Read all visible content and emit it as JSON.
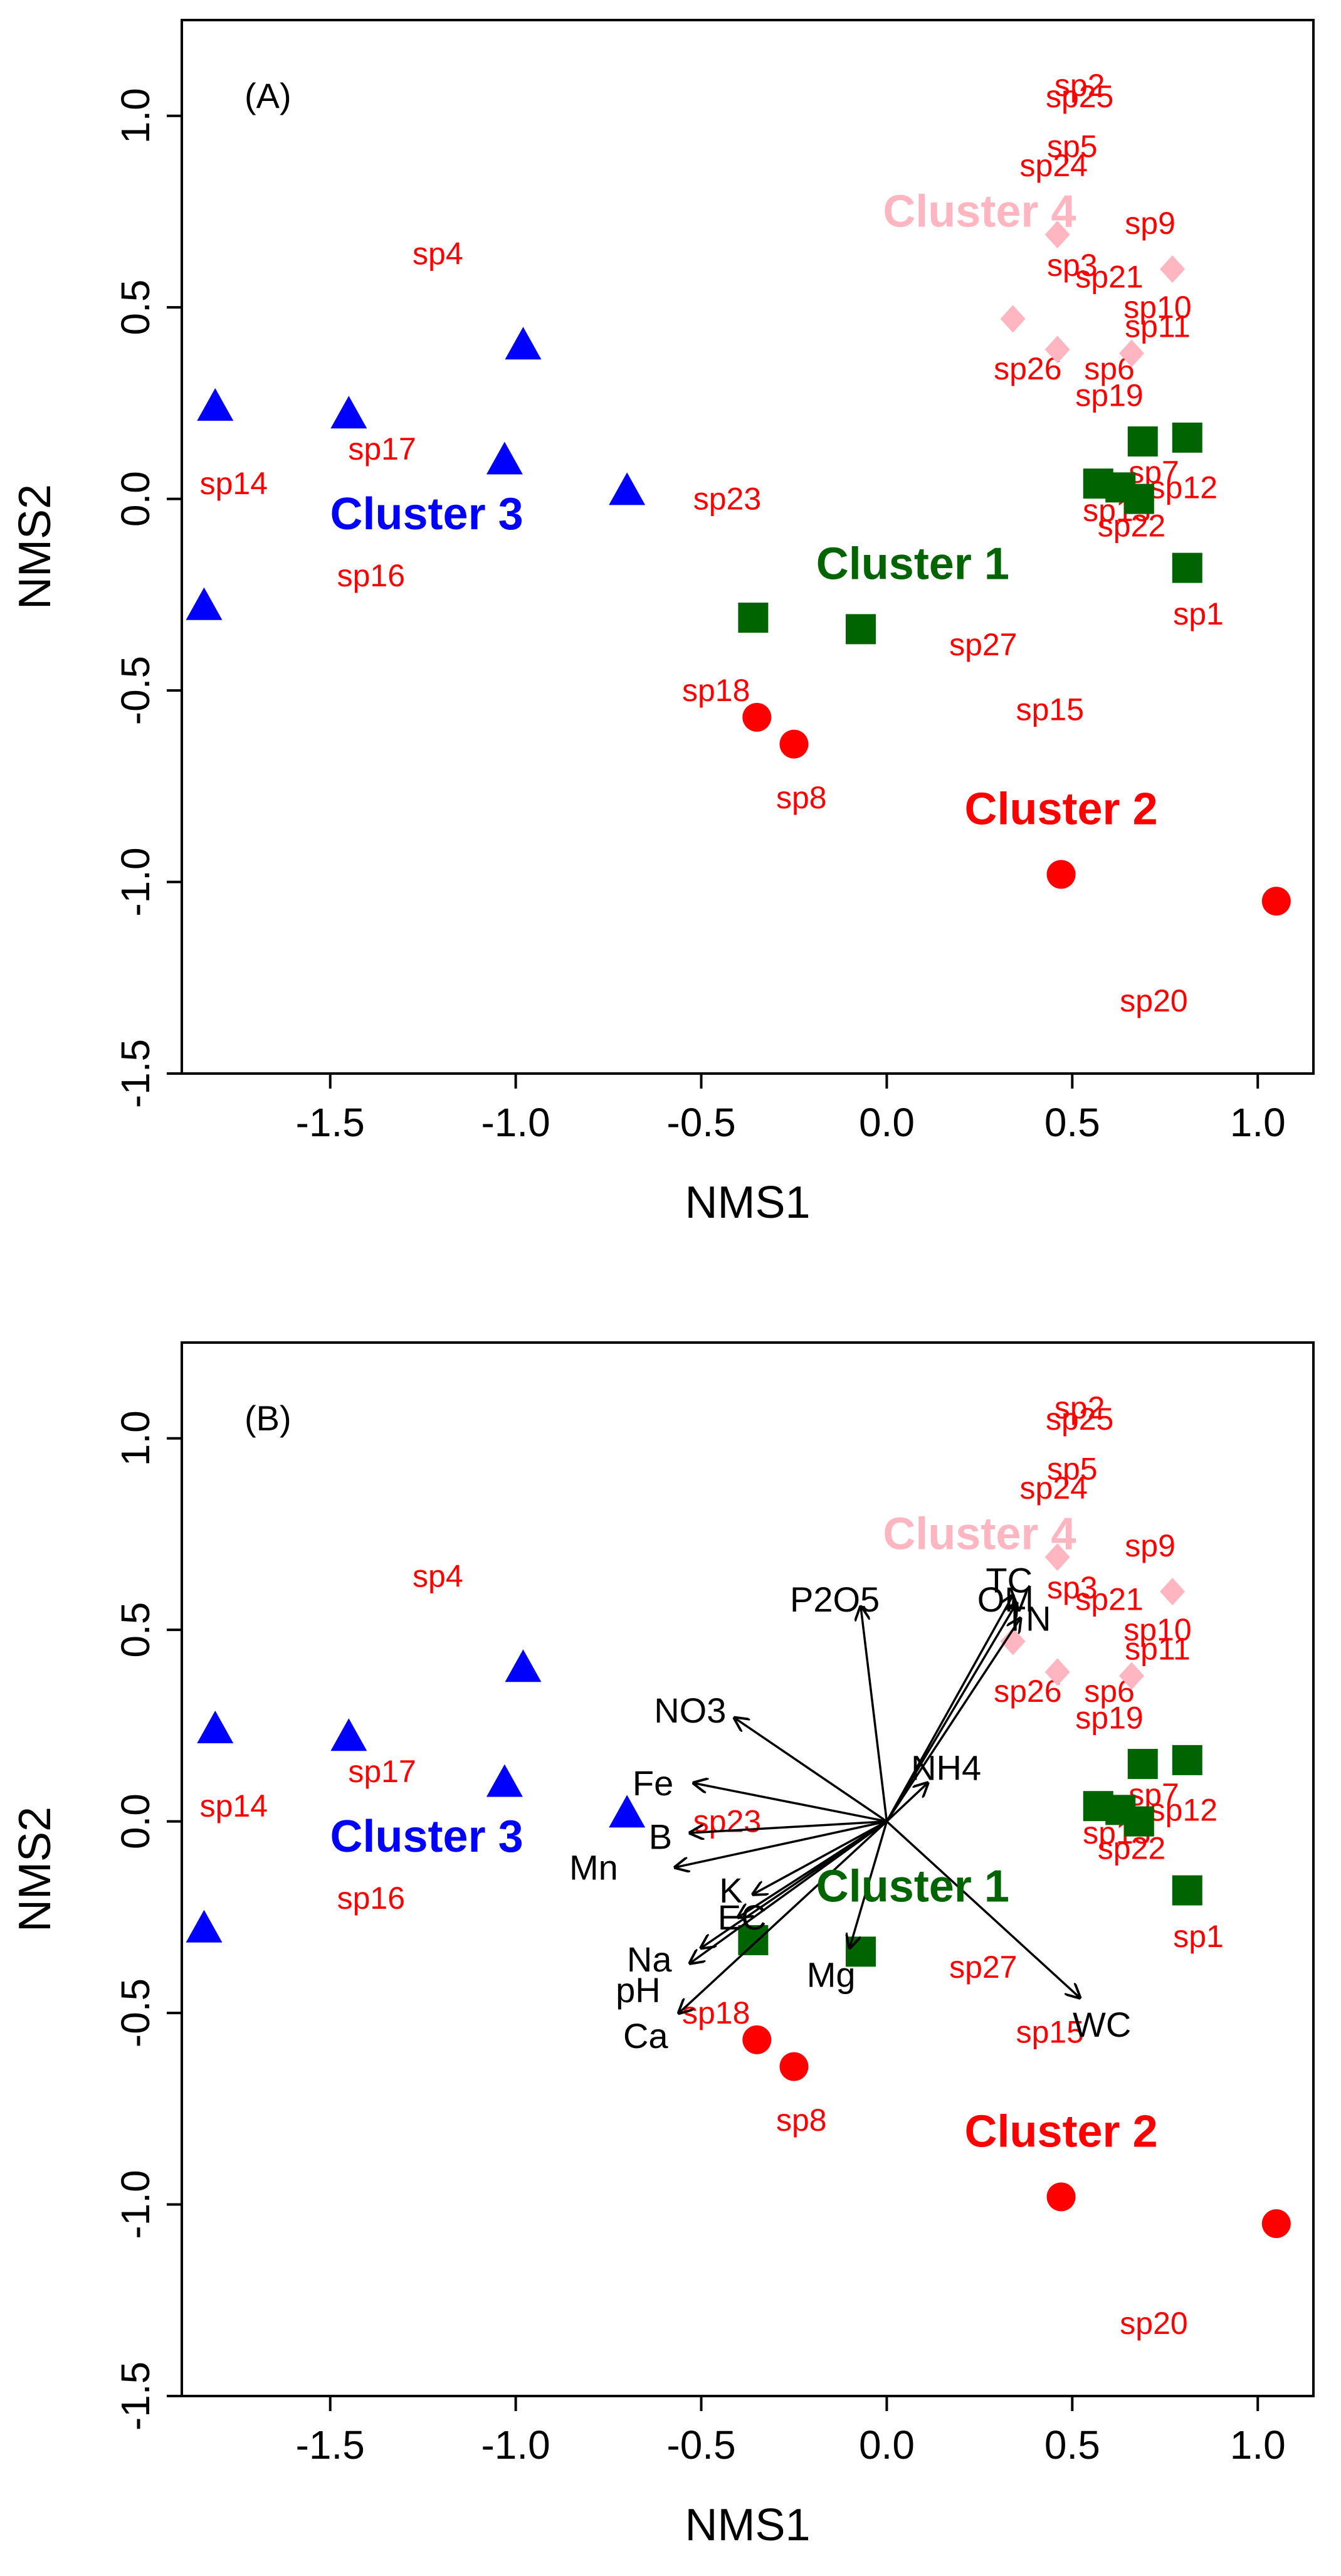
{
  "colors": {
    "cluster1": "#006400",
    "cluster2": "#ff0000",
    "cluster3": "#0000ff",
    "cluster4": "#ffb6c1",
    "species_text": "#ff0000",
    "vectors": "#000000"
  },
  "chart_data": [
    {
      "type": "scatter",
      "panel_label": "(A)",
      "xlabel": "NMS1",
      "ylabel": "NMS2",
      "xlim": [
        -1.9,
        1.15
      ],
      "ylim": [
        -1.5,
        1.25
      ],
      "xticks": [
        -1.5,
        -1.0,
        -0.5,
        0.0,
        0.5,
        1.0
      ],
      "xtick_labels": [
        "-1.5",
        "-1.0",
        "-0.5",
        "0.0",
        "0.5",
        "1.0"
      ],
      "yticks": [
        -1.5,
        -1.0,
        -0.5,
        0.0,
        0.5,
        1.0
      ],
      "ytick_labels": [
        "-1.5",
        "-1.0",
        "-0.5",
        "0.0",
        "0.5",
        "1.0"
      ],
      "clusters": [
        {
          "name": "Cluster 1",
          "marker": "square",
          "color": "#006400",
          "label_pos": [
            0.07,
            -0.17
          ],
          "points": [
            [
              0.81,
              0.16
            ],
            [
              0.69,
              0.15
            ],
            [
              0.57,
              0.04
            ],
            [
              0.63,
              0.03
            ],
            [
              0.68,
              0.0
            ],
            [
              0.81,
              -0.18
            ],
            [
              -0.36,
              -0.31
            ],
            [
              -0.07,
              -0.34
            ]
          ]
        },
        {
          "name": "Cluster 2",
          "marker": "circle",
          "color": "#ff0000",
          "label_pos": [
            0.47,
            -0.81
          ],
          "points": [
            [
              -0.35,
              -0.57
            ],
            [
              -0.25,
              -0.64
            ],
            [
              0.47,
              -0.98
            ],
            [
              1.05,
              -1.05
            ]
          ]
        },
        {
          "name": "Cluster 3",
          "marker": "triangle",
          "color": "#0000ff",
          "label_pos": [
            -1.24,
            -0.04
          ],
          "points": [
            [
              -0.98,
              0.4
            ],
            [
              -1.81,
              0.24
            ],
            [
              -1.45,
              0.22
            ],
            [
              -1.03,
              0.1
            ],
            [
              -0.7,
              0.02
            ],
            [
              -1.84,
              -0.28
            ]
          ]
        },
        {
          "name": "Cluster 4",
          "marker": "diamond",
          "color": "#ffb6c1",
          "label_pos": [
            0.25,
            0.75
          ],
          "points": [
            [
              0.46,
              0.69
            ],
            [
              0.77,
              0.6
            ],
            [
              0.34,
              0.47
            ],
            [
              0.46,
              0.39
            ],
            [
              0.66,
              0.38
            ]
          ]
        }
      ],
      "species": [
        {
          "label": "sp2",
          "x": 0.52,
          "y": 1.08
        },
        {
          "label": "sp25",
          "x": 0.52,
          "y": 1.05
        },
        {
          "label": "sp5",
          "x": 0.5,
          "y": 0.92
        },
        {
          "label": "sp24",
          "x": 0.45,
          "y": 0.87
        },
        {
          "label": "sp9",
          "x": 0.71,
          "y": 0.72
        },
        {
          "label": "sp3",
          "x": 0.5,
          "y": 0.61
        },
        {
          "label": "sp21",
          "x": 0.6,
          "y": 0.58
        },
        {
          "label": "sp10",
          "x": 0.73,
          "y": 0.5
        },
        {
          "label": "sp11",
          "x": 0.73,
          "y": 0.45
        },
        {
          "label": "sp26",
          "x": 0.38,
          "y": 0.34
        },
        {
          "label": "sp6",
          "x": 0.6,
          "y": 0.34
        },
        {
          "label": "sp19",
          "x": 0.6,
          "y": 0.27
        },
        {
          "label": "sp7",
          "x": 0.72,
          "y": 0.07
        },
        {
          "label": "sp12",
          "x": 0.8,
          "y": 0.03
        },
        {
          "label": "sp13",
          "x": 0.62,
          "y": -0.03
        },
        {
          "label": "sp22",
          "x": 0.66,
          "y": -0.07
        },
        {
          "label": "sp1",
          "x": 0.84,
          "y": -0.3
        },
        {
          "label": "sp27",
          "x": 0.26,
          "y": -0.38
        },
        {
          "label": "sp15",
          "x": 0.44,
          "y": -0.55
        },
        {
          "label": "sp18",
          "x": -0.46,
          "y": -0.5
        },
        {
          "label": "sp8",
          "x": -0.23,
          "y": -0.78
        },
        {
          "label": "sp20",
          "x": 0.72,
          "y": -1.31
        },
        {
          "label": "sp4",
          "x": -1.21,
          "y": 0.64
        },
        {
          "label": "sp17",
          "x": -1.36,
          "y": 0.13
        },
        {
          "label": "sp14",
          "x": -1.76,
          "y": 0.04
        },
        {
          "label": "sp16",
          "x": -1.39,
          "y": -0.2
        },
        {
          "label": "sp23",
          "x": -0.43,
          "y": 0.0
        }
      ]
    },
    {
      "type": "scatter",
      "panel_label": "(B)",
      "xlabel": "NMS1",
      "ylabel": "NMS2",
      "xlim": [
        -1.9,
        1.15
      ],
      "ylim": [
        -1.5,
        1.25
      ],
      "xticks": [
        -1.5,
        -1.0,
        -0.5,
        0.0,
        0.5,
        1.0
      ],
      "xtick_labels": [
        "-1.5",
        "-1.0",
        "-0.5",
        "0.0",
        "0.5",
        "1.0"
      ],
      "yticks": [
        -1.5,
        -1.0,
        -0.5,
        0.0,
        0.5,
        1.0
      ],
      "ytick_labels": [
        "-1.5",
        "-1.0",
        "-0.5",
        "0.0",
        "0.5",
        "1.0"
      ],
      "clusters": [
        {
          "name": "Cluster 1",
          "marker": "square",
          "color": "#006400",
          "label_pos": [
            0.07,
            -0.17
          ],
          "points": [
            [
              0.81,
              0.16
            ],
            [
              0.69,
              0.15
            ],
            [
              0.57,
              0.04
            ],
            [
              0.63,
              0.03
            ],
            [
              0.68,
              0.0
            ],
            [
              0.81,
              -0.18
            ],
            [
              -0.36,
              -0.31
            ],
            [
              -0.07,
              -0.34
            ]
          ]
        },
        {
          "name": "Cluster 2",
          "marker": "circle",
          "color": "#ff0000",
          "label_pos": [
            0.47,
            -0.81
          ],
          "points": [
            [
              -0.35,
              -0.57
            ],
            [
              -0.25,
              -0.64
            ],
            [
              0.47,
              -0.98
            ],
            [
              1.05,
              -1.05
            ]
          ]
        },
        {
          "name": "Cluster 3",
          "marker": "triangle",
          "color": "#0000ff",
          "label_pos": [
            -1.24,
            -0.04
          ],
          "points": [
            [
              -0.98,
              0.4
            ],
            [
              -1.81,
              0.24
            ],
            [
              -1.45,
              0.22
            ],
            [
              -1.03,
              0.1
            ],
            [
              -0.7,
              0.02
            ],
            [
              -1.84,
              -0.28
            ]
          ]
        },
        {
          "name": "Cluster 4",
          "marker": "diamond",
          "color": "#ffb6c1",
          "label_pos": [
            0.25,
            0.75
          ],
          "points": [
            [
              0.46,
              0.69
            ],
            [
              0.77,
              0.6
            ],
            [
              0.34,
              0.47
            ],
            [
              0.46,
              0.39
            ],
            [
              0.66,
              0.38
            ]
          ]
        }
      ],
      "species": [
        {
          "label": "sp2",
          "x": 0.52,
          "y": 1.08
        },
        {
          "label": "sp25",
          "x": 0.52,
          "y": 1.05
        },
        {
          "label": "sp5",
          "x": 0.5,
          "y": 0.92
        },
        {
          "label": "sp24",
          "x": 0.45,
          "y": 0.87
        },
        {
          "label": "sp9",
          "x": 0.71,
          "y": 0.72
        },
        {
          "label": "sp3",
          "x": 0.5,
          "y": 0.61
        },
        {
          "label": "sp21",
          "x": 0.6,
          "y": 0.58
        },
        {
          "label": "sp10",
          "x": 0.73,
          "y": 0.5
        },
        {
          "label": "sp11",
          "x": 0.73,
          "y": 0.45
        },
        {
          "label": "sp26",
          "x": 0.38,
          "y": 0.34
        },
        {
          "label": "sp6",
          "x": 0.6,
          "y": 0.34
        },
        {
          "label": "sp19",
          "x": 0.6,
          "y": 0.27
        },
        {
          "label": "sp7",
          "x": 0.72,
          "y": 0.07
        },
        {
          "label": "sp12",
          "x": 0.8,
          "y": 0.03
        },
        {
          "label": "sp13",
          "x": 0.62,
          "y": -0.03
        },
        {
          "label": "sp22",
          "x": 0.66,
          "y": -0.07
        },
        {
          "label": "sp1",
          "x": 0.84,
          "y": -0.3
        },
        {
          "label": "sp27",
          "x": 0.26,
          "y": -0.38
        },
        {
          "label": "sp15",
          "x": 0.44,
          "y": -0.55
        },
        {
          "label": "sp18",
          "x": -0.46,
          "y": -0.5
        },
        {
          "label": "sp8",
          "x": -0.23,
          "y": -0.78
        },
        {
          "label": "sp20",
          "x": 0.72,
          "y": -1.31
        },
        {
          "label": "sp4",
          "x": -1.21,
          "y": 0.64
        },
        {
          "label": "sp17",
          "x": -1.36,
          "y": 0.13
        },
        {
          "label": "sp14",
          "x": -1.76,
          "y": 0.04
        },
        {
          "label": "sp16",
          "x": -1.39,
          "y": -0.2
        },
        {
          "label": "sp23",
          "x": -0.43,
          "y": 0.0
        }
      ],
      "vectors": [
        {
          "label": "TC",
          "x": 0.34,
          "y": 0.59,
          "lx": 0.33,
          "ly": 0.63
        },
        {
          "label": "OM",
          "x": 0.35,
          "y": 0.57,
          "lx": 0.32,
          "ly": 0.58
        },
        {
          "label": "TN",
          "x": 0.36,
          "y": 0.53,
          "lx": 0.38,
          "ly": 0.53
        },
        {
          "label": "P2O5",
          "x": -0.07,
          "y": 0.56,
          "lx": -0.14,
          "ly": 0.58
        },
        {
          "label": "NO3",
          "x": -0.41,
          "y": 0.27,
          "lx": -0.53,
          "ly": 0.29
        },
        {
          "label": "NH4",
          "x": 0.11,
          "y": 0.1,
          "lx": 0.16,
          "ly": 0.14
        },
        {
          "label": "Fe",
          "x": -0.52,
          "y": 0.1,
          "lx": -0.63,
          "ly": 0.1
        },
        {
          "label": "B",
          "x": -0.53,
          "y": -0.03,
          "lx": -0.61,
          "ly": -0.04
        },
        {
          "label": "Mn",
          "x": -0.57,
          "y": -0.12,
          "lx": -0.79,
          "ly": -0.12
        },
        {
          "label": "K",
          "x": -0.36,
          "y": -0.19,
          "lx": -0.42,
          "ly": -0.18
        },
        {
          "label": "EC",
          "x": -0.4,
          "y": -0.25,
          "lx": -0.39,
          "ly": -0.25
        },
        {
          "label": "Na",
          "x": -0.5,
          "y": -0.33,
          "lx": -0.64,
          "ly": -0.36
        },
        {
          "label": "pH",
          "x": -0.53,
          "y": -0.37,
          "lx": -0.67,
          "ly": -0.44
        },
        {
          "label": "Ca",
          "x": -0.56,
          "y": -0.5,
          "lx": -0.65,
          "ly": -0.56
        },
        {
          "label": "Mg",
          "x": -0.1,
          "y": -0.33,
          "lx": -0.15,
          "ly": -0.4
        },
        {
          "label": "WC",
          "x": 0.52,
          "y": -0.46,
          "lx": 0.58,
          "ly": -0.53
        }
      ]
    }
  ]
}
